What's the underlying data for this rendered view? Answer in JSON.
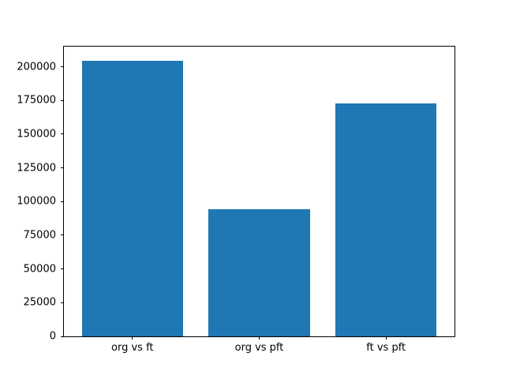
{
  "figure": {
    "background": "#ffffff"
  },
  "chart_data": {
    "type": "bar",
    "categories": [
      "org vs ft",
      "org vs pft",
      "ft vs pft"
    ],
    "values": [
      204500,
      94500,
      173000
    ],
    "title": "",
    "xlabel": "",
    "ylabel": "",
    "ylim": [
      0,
      215000
    ],
    "yticks": [
      0,
      25000,
      50000,
      75000,
      100000,
      125000,
      150000,
      175000,
      200000
    ],
    "bar_color": "#1f77b4",
    "axis_color": "#000000",
    "tick_label_color": "#000000",
    "grid": false,
    "legend": null,
    "bar_width_frac": 0.8,
    "x_margin": 0.05
  }
}
